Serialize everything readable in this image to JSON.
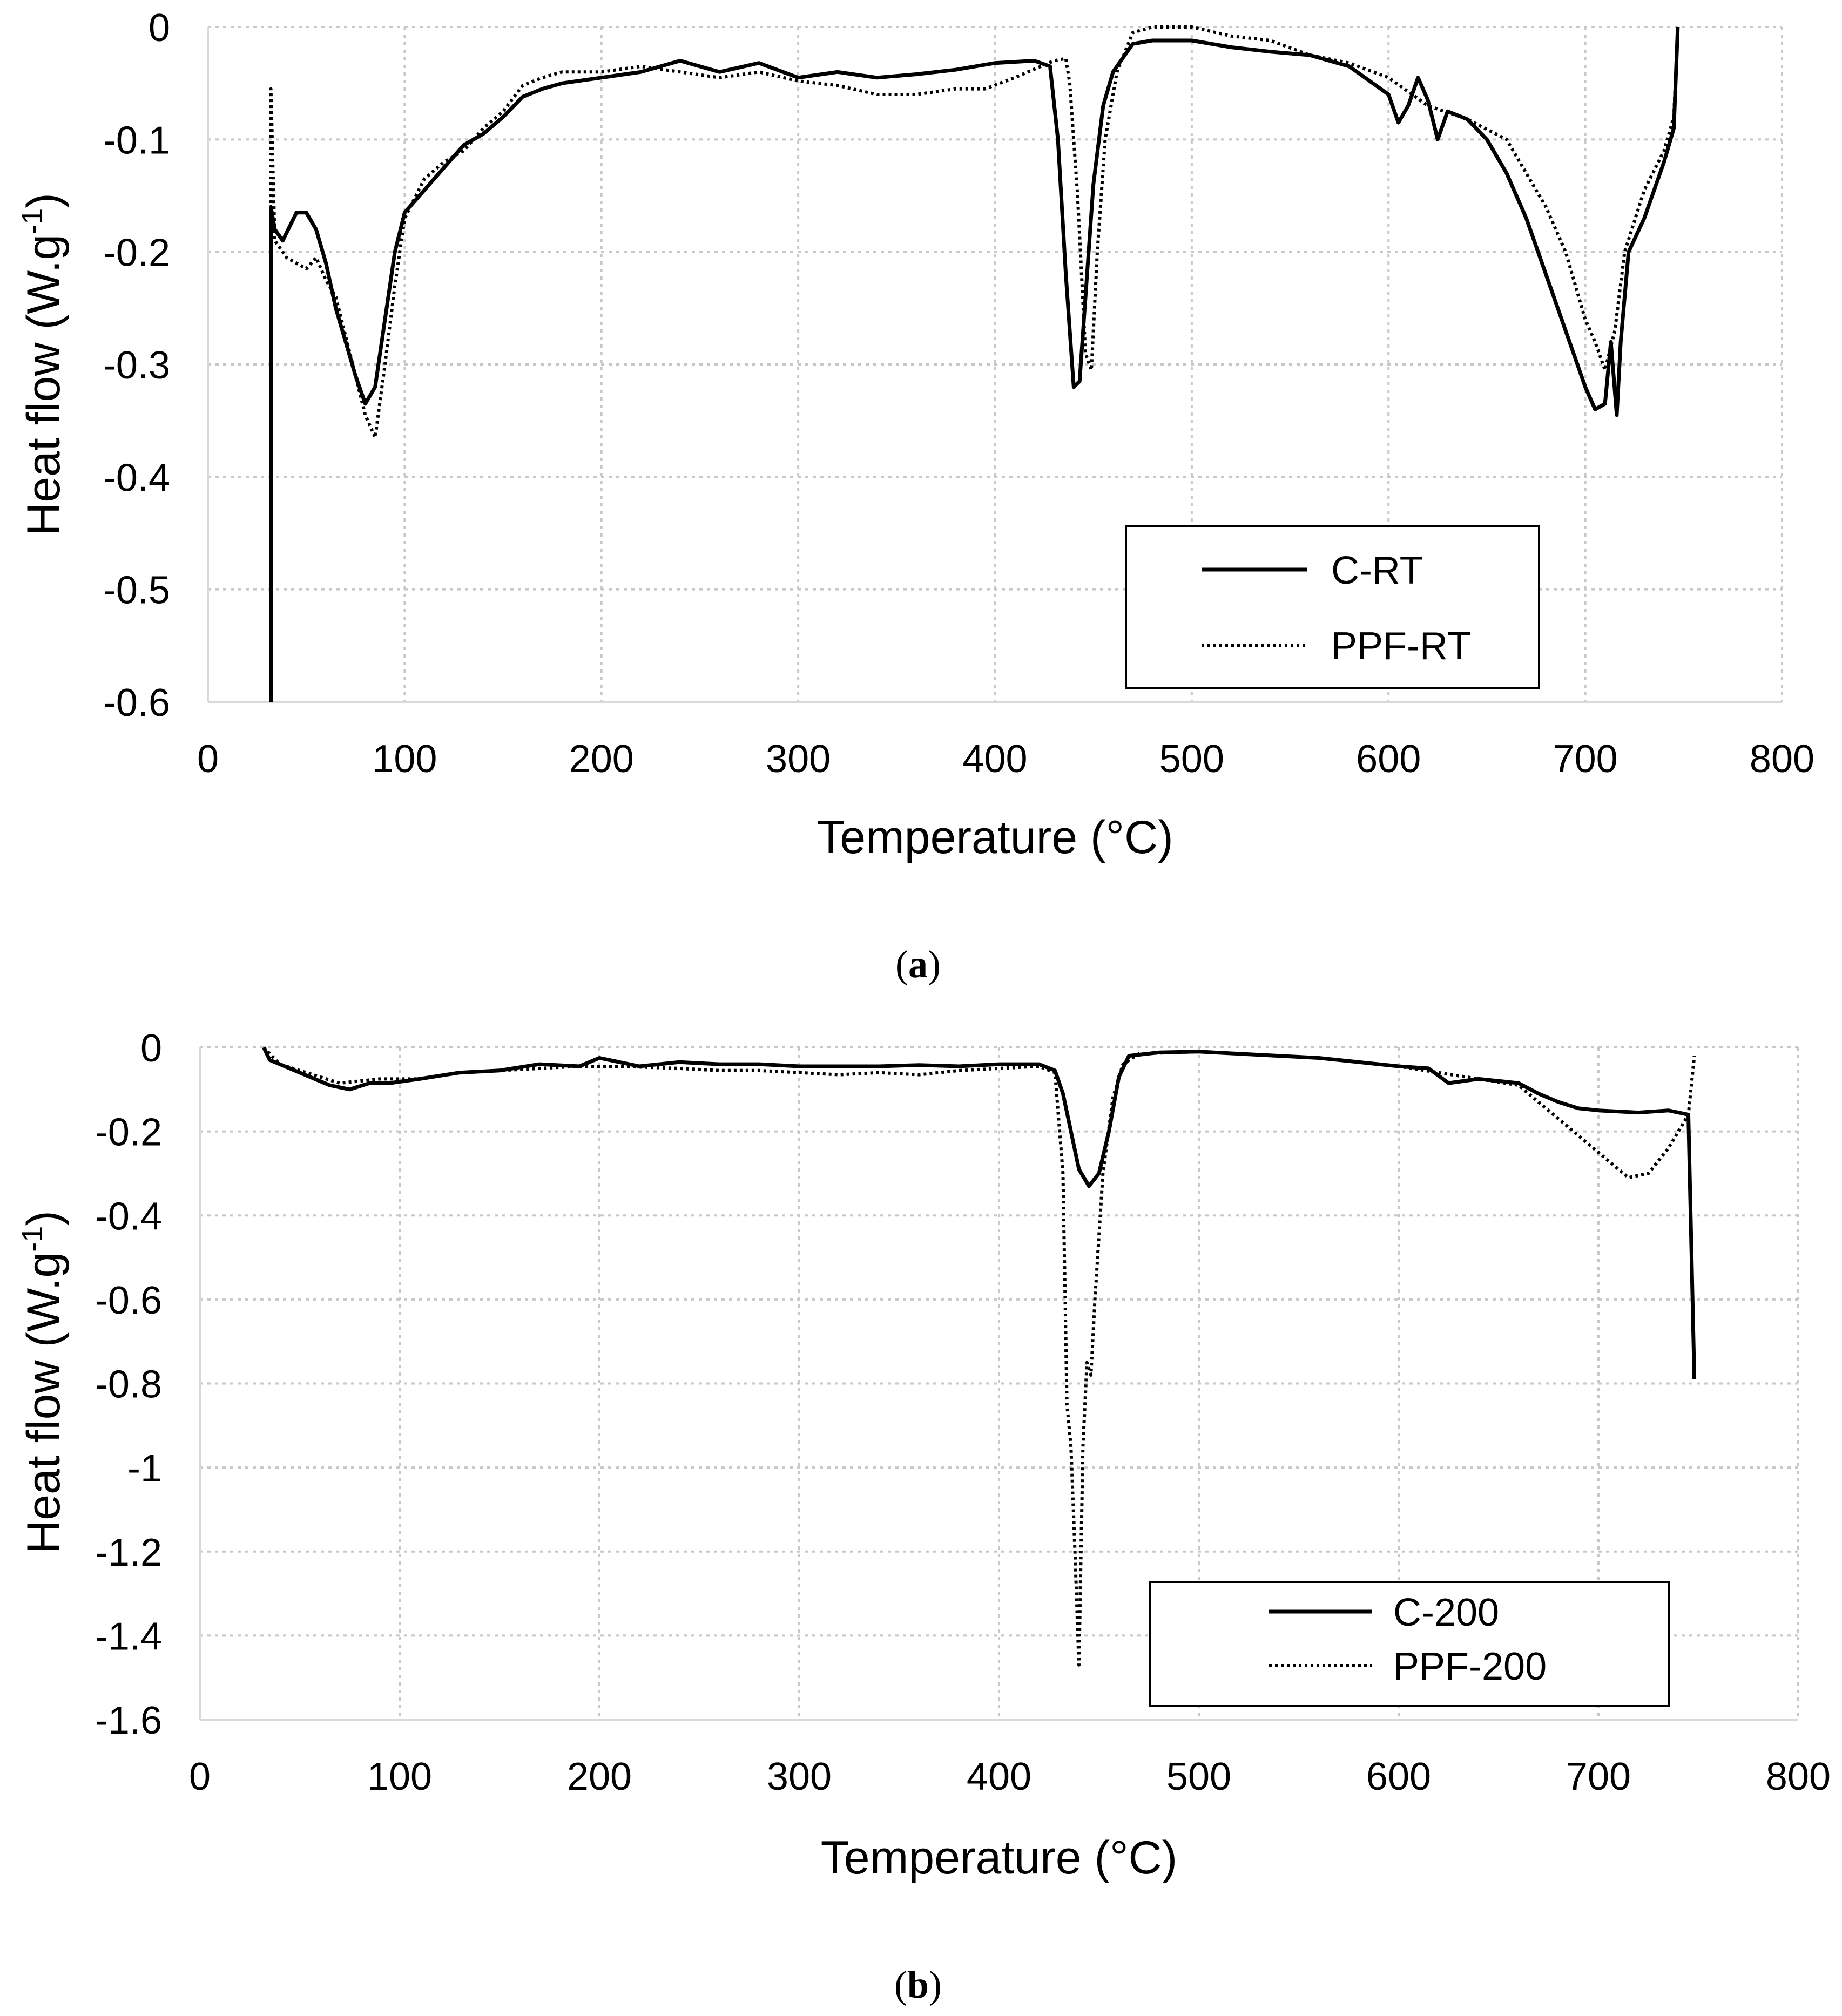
{
  "chart_data": [
    {
      "panel": "a",
      "caption_letter": "a",
      "type": "line",
      "title": "",
      "xlabel": "Temperature (°C)",
      "ylabel_main": "Heat flow (W.g",
      "ylabel_sup": "-1",
      "ylabel_end": ")",
      "xlim": [
        0,
        800
      ],
      "ylim": [
        -0.6,
        0
      ],
      "xticks": [
        "0",
        "100",
        "200",
        "300",
        "400",
        "500",
        "600",
        "700",
        "800"
      ],
      "yticks": [
        "0",
        "-0.1",
        "-0.2",
        "-0.3",
        "-0.4",
        "-0.5",
        "-0.6"
      ],
      "grid": true,
      "legend_position": "bottom-right",
      "series": [
        {
          "name": "C-RT",
          "style": "solid",
          "points": [
            [
              32,
              -0.6
            ],
            [
              32,
              -0.16
            ],
            [
              34,
              -0.18
            ],
            [
              38,
              -0.19
            ],
            [
              45,
              -0.165
            ],
            [
              50,
              -0.165
            ],
            [
              55,
              -0.18
            ],
            [
              60,
              -0.21
            ],
            [
              65,
              -0.25
            ],
            [
              70,
              -0.28
            ],
            [
              75,
              -0.31
            ],
            [
              80,
              -0.335
            ],
            [
              85,
              -0.32
            ],
            [
              90,
              -0.26
            ],
            [
              95,
              -0.2
            ],
            [
              100,
              -0.165
            ],
            [
              110,
              -0.145
            ],
            [
              120,
              -0.125
            ],
            [
              130,
              -0.105
            ],
            [
              140,
              -0.095
            ],
            [
              150,
              -0.08
            ],
            [
              160,
              -0.062
            ],
            [
              170,
              -0.055
            ],
            [
              180,
              -0.05
            ],
            [
              200,
              -0.045
            ],
            [
              220,
              -0.04
            ],
            [
              240,
              -0.03
            ],
            [
              260,
              -0.04
            ],
            [
              280,
              -0.032
            ],
            [
              300,
              -0.045
            ],
            [
              320,
              -0.04
            ],
            [
              340,
              -0.045
            ],
            [
              360,
              -0.042
            ],
            [
              380,
              -0.038
            ],
            [
              400,
              -0.032
            ],
            [
              420,
              -0.03
            ],
            [
              428,
              -0.035
            ],
            [
              432,
              -0.1
            ],
            [
              436,
              -0.22
            ],
            [
              440,
              -0.32
            ],
            [
              443,
              -0.315
            ],
            [
              446,
              -0.24
            ],
            [
              450,
              -0.14
            ],
            [
              455,
              -0.07
            ],
            [
              460,
              -0.04
            ],
            [
              470,
              -0.015
            ],
            [
              480,
              -0.012
            ],
            [
              500,
              -0.012
            ],
            [
              520,
              -0.018
            ],
            [
              540,
              -0.022
            ],
            [
              560,
              -0.025
            ],
            [
              580,
              -0.035
            ],
            [
              600,
              -0.06
            ],
            [
              605,
              -0.085
            ],
            [
              610,
              -0.07
            ],
            [
              615,
              -0.045
            ],
            [
              620,
              -0.065
            ],
            [
              625,
              -0.1
            ],
            [
              630,
              -0.075
            ],
            [
              640,
              -0.082
            ],
            [
              650,
              -0.1
            ],
            [
              660,
              -0.13
            ],
            [
              670,
              -0.17
            ],
            [
              680,
              -0.22
            ],
            [
              690,
              -0.27
            ],
            [
              700,
              -0.32
            ],
            [
              705,
              -0.34
            ],
            [
              710,
              -0.335
            ],
            [
              713,
              -0.28
            ],
            [
              716,
              -0.345
            ],
            [
              718,
              -0.28
            ],
            [
              722,
              -0.2
            ],
            [
              730,
              -0.17
            ],
            [
              740,
              -0.12
            ],
            [
              745,
              -0.09
            ],
            [
              747,
              0
            ]
          ]
        },
        {
          "name": "PPF-RT",
          "style": "dotted",
          "points": [
            [
              32,
              -0.6
            ],
            [
              32,
              -0.055
            ],
            [
              34,
              -0.19
            ],
            [
              40,
              -0.205
            ],
            [
              45,
              -0.21
            ],
            [
              50,
              -0.215
            ],
            [
              55,
              -0.205
            ],
            [
              60,
              -0.225
            ],
            [
              65,
              -0.24
            ],
            [
              70,
              -0.275
            ],
            [
              75,
              -0.31
            ],
            [
              80,
              -0.345
            ],
            [
              85,
              -0.365
            ],
            [
              90,
              -0.3
            ],
            [
              95,
              -0.23
            ],
            [
              100,
              -0.17
            ],
            [
              110,
              -0.135
            ],
            [
              120,
              -0.12
            ],
            [
              130,
              -0.11
            ],
            [
              140,
              -0.09
            ],
            [
              150,
              -0.075
            ],
            [
              160,
              -0.052
            ],
            [
              170,
              -0.045
            ],
            [
              180,
              -0.04
            ],
            [
              200,
              -0.04
            ],
            [
              220,
              -0.035
            ],
            [
              240,
              -0.04
            ],
            [
              260,
              -0.045
            ],
            [
              280,
              -0.04
            ],
            [
              300,
              -0.048
            ],
            [
              320,
              -0.052
            ],
            [
              340,
              -0.06
            ],
            [
              360,
              -0.06
            ],
            [
              380,
              -0.055
            ],
            [
              395,
              -0.055
            ],
            [
              410,
              -0.045
            ],
            [
              430,
              -0.03
            ],
            [
              436,
              -0.028
            ],
            [
              438,
              -0.05
            ],
            [
              442,
              -0.15
            ],
            [
              446,
              -0.29
            ],
            [
              449,
              -0.305
            ],
            [
              452,
              -0.2
            ],
            [
              456,
              -0.1
            ],
            [
              462,
              -0.04
            ],
            [
              470,
              -0.005
            ],
            [
              480,
              0
            ],
            [
              500,
              0
            ],
            [
              520,
              -0.008
            ],
            [
              540,
              -0.012
            ],
            [
              560,
              -0.025
            ],
            [
              580,
              -0.032
            ],
            [
              600,
              -0.045
            ],
            [
              620,
              -0.07
            ],
            [
              640,
              -0.082
            ],
            [
              660,
              -0.1
            ],
            [
              670,
              -0.13
            ],
            [
              680,
              -0.16
            ],
            [
              690,
              -0.2
            ],
            [
              700,
              -0.26
            ],
            [
              705,
              -0.28
            ],
            [
              710,
              -0.305
            ],
            [
              715,
              -0.27
            ],
            [
              720,
              -0.2
            ],
            [
              730,
              -0.145
            ],
            [
              740,
              -0.11
            ],
            [
              745,
              -0.08
            ],
            [
              747,
              0
            ]
          ]
        }
      ]
    },
    {
      "panel": "b",
      "caption_letter": "b",
      "type": "line",
      "title": "",
      "xlabel": "Temperature (°C)",
      "ylabel_main": "Heat flow (W.g",
      "ylabel_sup": "-1",
      "ylabel_end": ")",
      "xlim": [
        0,
        800
      ],
      "ylim": [
        -1.6,
        0
      ],
      "xticks": [
        "0",
        "100",
        "200",
        "300",
        "400",
        "500",
        "600",
        "700",
        "800"
      ],
      "yticks": [
        "0",
        "-0.2",
        "-0.4",
        "-0.6",
        "-0.8",
        "-1",
        "-1.2",
        "-1.4",
        "-1.6"
      ],
      "grid": true,
      "legend_position": "bottom-right",
      "series": [
        {
          "name": "C-200",
          "style": "solid",
          "points": [
            [
              32,
              0
            ],
            [
              35,
              -0.03
            ],
            [
              45,
              -0.05
            ],
            [
              55,
              -0.07
            ],
            [
              65,
              -0.09
            ],
            [
              75,
              -0.1
            ],
            [
              85,
              -0.085
            ],
            [
              95,
              -0.085
            ],
            [
              110,
              -0.075
            ],
            [
              130,
              -0.06
            ],
            [
              150,
              -0.055
            ],
            [
              170,
              -0.04
            ],
            [
              190,
              -0.045
            ],
            [
              200,
              -0.025
            ],
            [
              220,
              -0.045
            ],
            [
              240,
              -0.035
            ],
            [
              260,
              -0.04
            ],
            [
              280,
              -0.04
            ],
            [
              300,
              -0.045
            ],
            [
              320,
              -0.045
            ],
            [
              340,
              -0.045
            ],
            [
              360,
              -0.042
            ],
            [
              380,
              -0.045
            ],
            [
              400,
              -0.04
            ],
            [
              420,
              -0.04
            ],
            [
              428,
              -0.055
            ],
            [
              432,
              -0.11
            ],
            [
              436,
              -0.2
            ],
            [
              440,
              -0.29
            ],
            [
              445,
              -0.33
            ],
            [
              450,
              -0.3
            ],
            [
              455,
              -0.2
            ],
            [
              460,
              -0.07
            ],
            [
              465,
              -0.02
            ],
            [
              480,
              -0.012
            ],
            [
              500,
              -0.01
            ],
            [
              520,
              -0.015
            ],
            [
              540,
              -0.02
            ],
            [
              560,
              -0.025
            ],
            [
              580,
              -0.035
            ],
            [
              600,
              -0.045
            ],
            [
              615,
              -0.05
            ],
            [
              625,
              -0.085
            ],
            [
              640,
              -0.075
            ],
            [
              660,
              -0.085
            ],
            [
              670,
              -0.11
            ],
            [
              680,
              -0.13
            ],
            [
              690,
              -0.145
            ],
            [
              700,
              -0.15
            ],
            [
              720,
              -0.155
            ],
            [
              735,
              -0.15
            ],
            [
              745,
              -0.16
            ],
            [
              748,
              -0.79
            ]
          ]
        },
        {
          "name": "PPF-200",
          "style": "dotted",
          "points": [
            [
              32,
              0
            ],
            [
              40,
              -0.04
            ],
            [
              50,
              -0.055
            ],
            [
              60,
              -0.07
            ],
            [
              70,
              -0.085
            ],
            [
              80,
              -0.08
            ],
            [
              90,
              -0.075
            ],
            [
              110,
              -0.075
            ],
            [
              130,
              -0.06
            ],
            [
              150,
              -0.055
            ],
            [
              170,
              -0.05
            ],
            [
              190,
              -0.045
            ],
            [
              210,
              -0.045
            ],
            [
              240,
              -0.05
            ],
            [
              260,
              -0.055
            ],
            [
              280,
              -0.055
            ],
            [
              300,
              -0.06
            ],
            [
              320,
              -0.065
            ],
            [
              340,
              -0.06
            ],
            [
              360,
              -0.065
            ],
            [
              380,
              -0.055
            ],
            [
              400,
              -0.05
            ],
            [
              420,
              -0.045
            ],
            [
              428,
              -0.06
            ],
            [
              432,
              -0.3
            ],
            [
              434,
              -0.85
            ],
            [
              436,
              -0.95
            ],
            [
              438,
              -1.2
            ],
            [
              440,
              -1.47
            ],
            [
              442,
              -0.95
            ],
            [
              444,
              -0.75
            ],
            [
              446,
              -0.78
            ],
            [
              448,
              -0.6
            ],
            [
              452,
              -0.3
            ],
            [
              457,
              -0.12
            ],
            [
              462,
              -0.04
            ],
            [
              470,
              -0.015
            ],
            [
              500,
              -0.01
            ],
            [
              520,
              -0.015
            ],
            [
              540,
              -0.02
            ],
            [
              560,
              -0.025
            ],
            [
              580,
              -0.035
            ],
            [
              600,
              -0.045
            ],
            [
              620,
              -0.06
            ],
            [
              640,
              -0.075
            ],
            [
              660,
              -0.09
            ],
            [
              670,
              -0.13
            ],
            [
              680,
              -0.17
            ],
            [
              690,
              -0.21
            ],
            [
              700,
              -0.25
            ],
            [
              710,
              -0.29
            ],
            [
              715,
              -0.31
            ],
            [
              725,
              -0.3
            ],
            [
              735,
              -0.24
            ],
            [
              745,
              -0.16
            ],
            [
              748,
              -0.02
            ]
          ]
        }
      ]
    }
  ]
}
